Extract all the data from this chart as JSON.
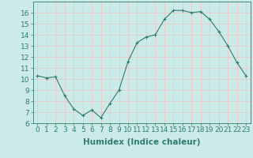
{
  "x": [
    0,
    1,
    2,
    3,
    4,
    5,
    6,
    7,
    8,
    9,
    10,
    11,
    12,
    13,
    14,
    15,
    16,
    17,
    18,
    19,
    20,
    21,
    22,
    23
  ],
  "y": [
    10.3,
    10.1,
    10.2,
    8.5,
    7.3,
    6.7,
    7.2,
    6.5,
    7.8,
    9.0,
    11.6,
    13.3,
    13.8,
    14.0,
    15.4,
    16.2,
    16.2,
    16.0,
    16.1,
    15.4,
    14.3,
    13.0,
    11.5,
    10.3
  ],
  "xlabel": "Humidex (Indice chaleur)",
  "ylabel": "",
  "xlim": [
    -0.5,
    23.5
  ],
  "ylim": [
    6,
    17
  ],
  "yticks": [
    6,
    7,
    8,
    9,
    10,
    11,
    12,
    13,
    14,
    15,
    16
  ],
  "xticks": [
    0,
    1,
    2,
    3,
    4,
    5,
    6,
    7,
    8,
    9,
    10,
    11,
    12,
    13,
    14,
    15,
    16,
    17,
    18,
    19,
    20,
    21,
    22,
    23
  ],
  "line_color": "#2e7d6e",
  "marker_color": "#2e7d6e",
  "bg_color": "#cceae7",
  "grid_color": "#e8c8c8",
  "tick_fontsize": 6.5,
  "xlabel_fontsize": 7.5
}
